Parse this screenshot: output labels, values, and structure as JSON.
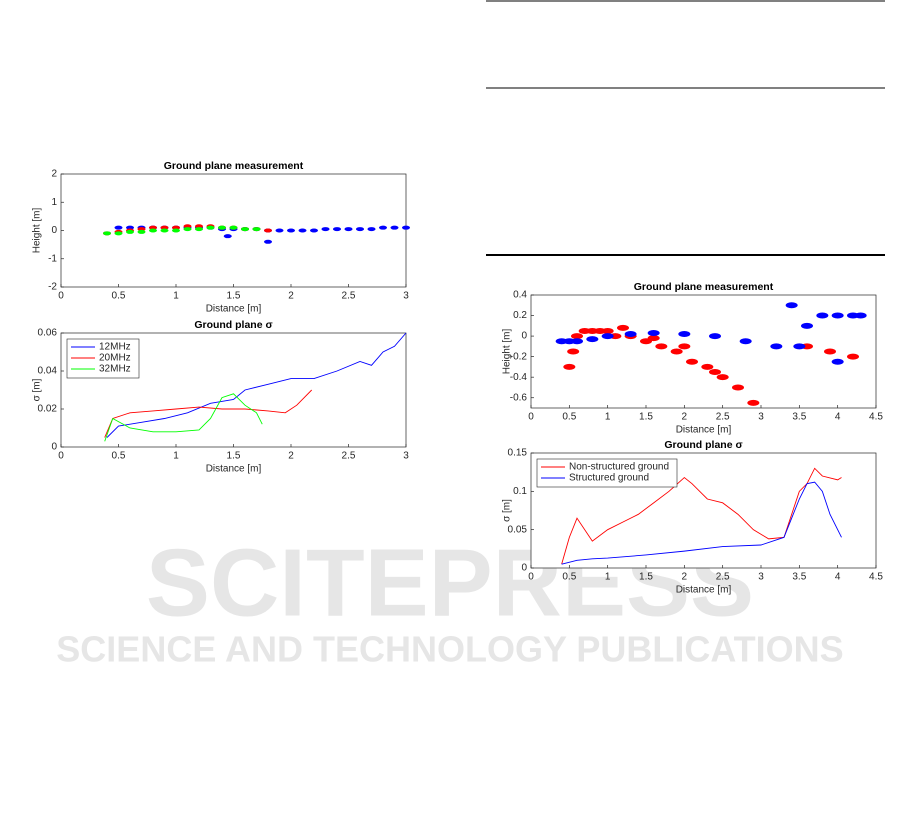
{
  "watermark": {
    "brand": "SCITEPRESS",
    "tagline": "SCIENCE AND TECHNOLOGY PUBLICATIONS"
  },
  "chart_data": [
    {
      "type": "scatter",
      "title": "Ground plane measurement",
      "xlabel": "Distance [m]",
      "ylabel": "Height [m]",
      "xlim": [
        0,
        3
      ],
      "ylim": [
        -2,
        2
      ],
      "xticks": [
        0,
        0.5,
        1,
        1.5,
        2,
        2.5,
        3
      ],
      "yticks": [
        -2,
        -1,
        0,
        1,
        2
      ],
      "series": [
        {
          "color": "#0000ff",
          "x": [
            0.5,
            0.6,
            0.7,
            0.8,
            0.9,
            1.0,
            1.1,
            1.2,
            1.3,
            1.4,
            1.5,
            1.6,
            1.7,
            1.8,
            1.9,
            2.0,
            2.1,
            2.2,
            2.3,
            2.4,
            2.5,
            2.6,
            2.7,
            2.8,
            2.9,
            3.0,
            1.8,
            1.45
          ],
          "values": [
            0.1,
            0.1,
            0.1,
            0.1,
            0.1,
            0.1,
            0.1,
            0.1,
            0.1,
            0.05,
            0.05,
            0.05,
            0.05,
            0,
            0,
            0,
            0,
            0,
            0.05,
            0.05,
            0.05,
            0.05,
            0.05,
            0.1,
            0.1,
            0.1,
            -0.4,
            -0.2
          ]
        },
        {
          "color": "#ff0000",
          "x": [
            0.4,
            0.5,
            0.6,
            0.7,
            0.8,
            0.9,
            1.0,
            1.1,
            1.2,
            1.3,
            1.4,
            1.5,
            1.6,
            1.7,
            1.8
          ],
          "values": [
            -0.1,
            -0.05,
            0,
            0.05,
            0.1,
            0.1,
            0.1,
            0.15,
            0.15,
            0.15,
            0.1,
            0.1,
            0.05,
            0.05,
            0
          ]
        },
        {
          "color": "#00ff00",
          "x": [
            0.4,
            0.5,
            0.6,
            0.7,
            0.8,
            0.9,
            1.0,
            1.1,
            1.2,
            1.3,
            1.4,
            1.5,
            1.6,
            1.7
          ],
          "values": [
            -0.1,
            -0.1,
            -0.05,
            -0.05,
            0,
            0,
            0,
            0.05,
            0.05,
            0.1,
            0.1,
            0.1,
            0.05,
            0.05
          ]
        }
      ]
    },
    {
      "type": "line",
      "title": "Ground plane σ",
      "xlabel": "Distance [m]",
      "ylabel": "σ [m]",
      "xlim": [
        0,
        3
      ],
      "ylim": [
        0,
        0.06
      ],
      "xticks": [
        0,
        0.5,
        1,
        1.5,
        2,
        2.5,
        3
      ],
      "yticks": [
        0,
        0.02,
        0.04,
        0.06
      ],
      "legend": "upper-left",
      "series": [
        {
          "name": "12MHz",
          "color": "#0000ff",
          "x": [
            0.4,
            0.5,
            0.7,
            0.9,
            1.1,
            1.3,
            1.5,
            1.6,
            1.8,
            2.0,
            2.2,
            2.4,
            2.6,
            2.7,
            2.8,
            2.9,
            3.0
          ],
          "values": [
            0.005,
            0.011,
            0.013,
            0.015,
            0.018,
            0.023,
            0.025,
            0.03,
            0.033,
            0.036,
            0.036,
            0.04,
            0.045,
            0.043,
            0.05,
            0.053,
            0.06
          ]
        },
        {
          "name": "20MHz",
          "color": "#ff0000",
          "x": [
            0.38,
            0.45,
            0.6,
            0.8,
            1.0,
            1.2,
            1.4,
            1.6,
            1.8,
            1.95,
            2.05,
            2.18
          ],
          "values": [
            0.005,
            0.015,
            0.018,
            0.019,
            0.02,
            0.021,
            0.02,
            0.02,
            0.019,
            0.018,
            0.022,
            0.03
          ]
        },
        {
          "name": "32MHz",
          "color": "#00ff00",
          "x": [
            0.38,
            0.45,
            0.6,
            0.8,
            1.0,
            1.2,
            1.3,
            1.4,
            1.5,
            1.6,
            1.7,
            1.75
          ],
          "values": [
            0.003,
            0.015,
            0.01,
            0.008,
            0.008,
            0.009,
            0.015,
            0.026,
            0.028,
            0.022,
            0.018,
            0.012
          ]
        }
      ]
    },
    {
      "type": "scatter",
      "title": "Ground plane measurement",
      "xlabel": "Distance [m]",
      "ylabel": "Height [m]",
      "xlim": [
        0,
        4.5
      ],
      "ylim": [
        -0.7,
        0.4
      ],
      "xticks": [
        0,
        0.5,
        1,
        1.5,
        2,
        2.5,
        3,
        3.5,
        4,
        4.5
      ],
      "yticks": [
        -0.6,
        -0.4,
        -0.2,
        0,
        0.2,
        0.4
      ],
      "series": [
        {
          "color": "#ff0000",
          "x": [
            0.5,
            0.55,
            0.6,
            0.7,
            0.8,
            0.9,
            1.0,
            1.1,
            1.3,
            1.5,
            1.7,
            1.9,
            2.1,
            2.3,
            2.5,
            2.7,
            2.9,
            1.2,
            1.6,
            2.0,
            2.4,
            3.6,
            3.9,
            4.2
          ],
          "values": [
            -0.3,
            -0.15,
            0,
            0.05,
            0.05,
            0.05,
            0.05,
            0,
            0,
            -0.05,
            -0.1,
            -0.15,
            -0.25,
            -0.3,
            -0.4,
            -0.5,
            -0.65,
            0.08,
            -0.02,
            -0.1,
            -0.35,
            -0.1,
            -0.15,
            -0.2
          ]
        },
        {
          "color": "#0000ff",
          "x": [
            0.4,
            0.5,
            0.6,
            0.8,
            1.0,
            1.3,
            1.6,
            2.0,
            2.4,
            2.8,
            3.2,
            3.5,
            3.6,
            3.8,
            4.0,
            4.2,
            4.3,
            3.4,
            4.0
          ],
          "values": [
            -0.05,
            -0.05,
            -0.05,
            -0.03,
            0,
            0.02,
            0.03,
            0.02,
            0,
            -0.05,
            -0.1,
            -0.1,
            0.1,
            0.2,
            0.2,
            0.2,
            0.2,
            0.3,
            -0.25
          ]
        }
      ]
    },
    {
      "type": "line",
      "title": "Ground plane σ",
      "xlabel": "Distance [m]",
      "ylabel": "σ [m]",
      "xlim": [
        0,
        4.5
      ],
      "ylim": [
        0,
        0.15
      ],
      "xticks": [
        0,
        0.5,
        1,
        1.5,
        2,
        2.5,
        3,
        3.5,
        4,
        4.5
      ],
      "yticks": [
        0,
        0.05,
        0.1,
        0.15
      ],
      "legend": "upper-left",
      "series": [
        {
          "name": "Non-structured ground",
          "color": "#ff0000",
          "x": [
            0.4,
            0.5,
            0.6,
            0.8,
            1.0,
            1.2,
            1.4,
            1.6,
            1.8,
            2.0,
            2.1,
            2.3,
            2.5,
            2.7,
            2.9,
            3.1,
            3.3,
            3.5,
            3.6,
            3.7,
            3.8,
            4.0,
            4.05
          ],
          "values": [
            0.005,
            0.04,
            0.065,
            0.035,
            0.05,
            0.06,
            0.07,
            0.085,
            0.1,
            0.118,
            0.11,
            0.09,
            0.085,
            0.07,
            0.05,
            0.038,
            0.04,
            0.1,
            0.11,
            0.13,
            0.12,
            0.115,
            0.118
          ]
        },
        {
          "name": "Structured ground",
          "color": "#0000ff",
          "x": [
            0.4,
            0.6,
            0.8,
            1.0,
            1.5,
            2.0,
            2.5,
            3.0,
            3.3,
            3.5,
            3.6,
            3.7,
            3.8,
            3.9,
            4.05
          ],
          "values": [
            0.005,
            0.01,
            0.012,
            0.013,
            0.017,
            0.022,
            0.028,
            0.03,
            0.04,
            0.09,
            0.11,
            0.112,
            0.1,
            0.07,
            0.04
          ]
        }
      ]
    }
  ]
}
